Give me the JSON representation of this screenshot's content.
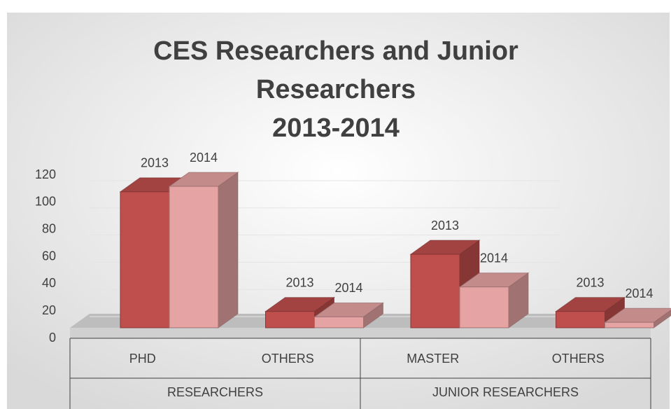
{
  "chart_data": {
    "type": "bar3d",
    "title_lines": [
      "CES Researchers and Junior",
      "Researchers",
      "2013-2014"
    ],
    "categories": [
      "PHD",
      "OTHERS",
      "MASTER",
      "OTHERS"
    ],
    "category_groups": [
      "RESEARCHERS",
      "JUNIOR RESEARCHERS"
    ],
    "series": [
      {
        "name": "2013",
        "color": "#bf4f4c",
        "values": [
          100,
          12,
          54,
          12
        ]
      },
      {
        "name": "2014",
        "color": "#e6a3a3",
        "values": [
          104,
          8,
          30,
          4
        ]
      }
    ],
    "ylim": [
      0,
      120
    ],
    "yticks": [
      0,
      20,
      40,
      60,
      80,
      100,
      120
    ],
    "grid": true
  }
}
